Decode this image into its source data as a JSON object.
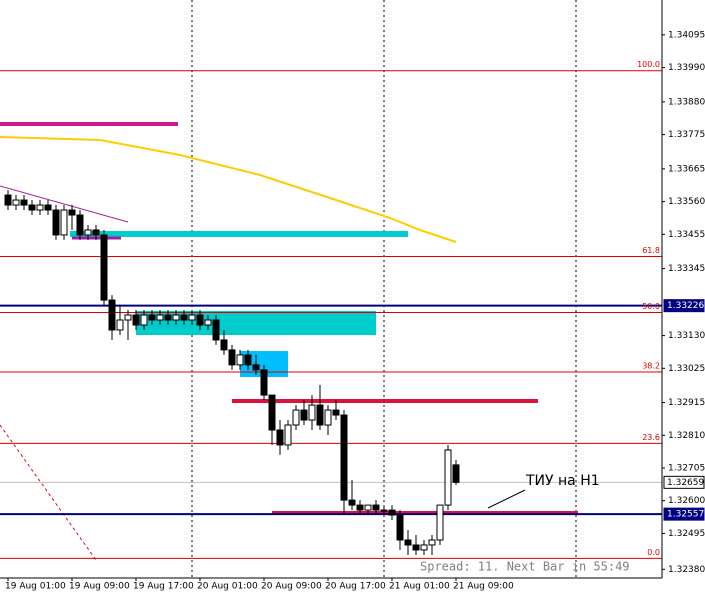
{
  "chart_data": {
    "type": "candlestick",
    "categories": [
      "19 Aug 01:00",
      null,
      null,
      null,
      null,
      null,
      null,
      null,
      "19 Aug 09:00",
      null,
      null,
      null,
      null,
      null,
      null,
      null,
      "19 Aug 17:00",
      null,
      null,
      null,
      null,
      null,
      null,
      null,
      "20 Aug 01:00",
      null,
      null,
      null,
      null,
      null,
      null,
      null,
      "20 Aug 09:00",
      null,
      null,
      null,
      null,
      null,
      null,
      null,
      "20 Aug 17:00",
      null,
      null,
      null,
      null,
      null,
      null,
      null,
      "21 Aug 01:00",
      null,
      null,
      null,
      null,
      null,
      null,
      null,
      "21 Aug 09:00"
    ],
    "open": [
      1.33581,
      1.33549,
      1.33565,
      1.33549,
      1.33533,
      1.33549,
      1.33533,
      1.33453,
      1.33533,
      1.33517,
      1.33453,
      1.33469,
      1.33453,
      1.33244,
      1.33148,
      1.3318,
      1.33196,
      1.33164,
      1.33196,
      1.3318,
      1.33196,
      1.3318,
      1.33196,
      1.3318,
      1.33196,
      1.33164,
      1.3318,
      1.33116,
      1.33084,
      1.33036,
      1.33068,
      1.33036,
      1.3302,
      1.32939,
      1.32827,
      1.32779,
      1.32843,
      1.32891,
      1.32859,
      1.32907,
      1.32843,
      1.32891,
      1.32875,
      1.32602,
      1.32586,
      1.3257,
      1.32586,
      1.3257,
      1.3257,
      1.32554,
      1.32474,
      1.32458,
      1.32442,
      1.32458,
      1.32474,
      1.32586,
      1.32715
    ],
    "high": [
      1.33597,
      1.33581,
      1.33581,
      1.33565,
      1.33565,
      1.33565,
      1.33549,
      1.33549,
      1.33549,
      1.33533,
      1.33485,
      1.33485,
      1.33469,
      1.3326,
      1.33228,
      1.33212,
      1.33212,
      1.33212,
      1.33212,
      1.33212,
      1.33212,
      1.33212,
      1.33212,
      1.33212,
      1.33212,
      1.33196,
      1.33196,
      1.33148,
      1.331,
      1.33084,
      1.33084,
      1.33068,
      1.33036,
      1.32939,
      1.32859,
      1.32859,
      1.32907,
      1.32923,
      1.32939,
      1.32972,
      1.32907,
      1.32923,
      1.32891,
      1.32667,
      1.32602,
      1.32586,
      1.32602,
      1.32586,
      1.32586,
      1.3257,
      1.32506,
      1.3249,
      1.32474,
      1.3249,
      1.32586,
      1.32779,
      1.32731
    ],
    "low": [
      1.33533,
      1.33533,
      1.33533,
      1.33517,
      1.33517,
      1.33517,
      1.33437,
      1.33437,
      1.33469,
      1.33437,
      1.33437,
      1.33437,
      1.33228,
      1.33116,
      1.33132,
      1.33116,
      1.33148,
      1.33148,
      1.33164,
      1.33164,
      1.33164,
      1.33164,
      1.33164,
      1.33164,
      1.33148,
      1.33148,
      1.331,
      1.33068,
      1.3302,
      1.3302,
      1.3302,
      1.33004,
      1.32923,
      1.32779,
      1.32747,
      1.32763,
      1.32827,
      1.32843,
      1.32827,
      1.32827,
      1.32811,
      1.32859,
      1.32554,
      1.3257,
      1.32554,
      1.32554,
      1.32554,
      1.32554,
      1.32538,
      1.32442,
      1.32426,
      1.32426,
      1.32426,
      1.32426,
      1.32458,
      1.3257,
      1.32651
    ],
    "close": [
      1.33549,
      1.33565,
      1.33549,
      1.33533,
      1.33549,
      1.33533,
      1.33453,
      1.33533,
      1.33517,
      1.33453,
      1.33469,
      1.33453,
      1.33244,
      1.33148,
      1.3318,
      1.33196,
      1.33164,
      1.33196,
      1.3318,
      1.33196,
      1.3318,
      1.33196,
      1.3318,
      1.33196,
      1.33164,
      1.3318,
      1.33116,
      1.33084,
      1.33036,
      1.33068,
      1.33036,
      1.3302,
      1.32939,
      1.32827,
      1.32779,
      1.32843,
      1.32891,
      1.32859,
      1.32907,
      1.32843,
      1.32891,
      1.32875,
      1.32602,
      1.32586,
      1.3257,
      1.32586,
      1.3257,
      1.3257,
      1.32554,
      1.32474,
      1.32458,
      1.32442,
      1.32458,
      1.32474,
      1.32586,
      1.32763,
      1.32659
    ],
    "ylim": [
      1.32352,
      1.34207
    ],
    "yticks": [
      1.34095,
      {
        "value": 1.3399,
        "label": "1.33990"
      },
      {
        "value": 1.3388,
        "label": "1.33880"
      },
      1.33775,
      1.33665,
      {
        "value": 1.3356,
        "label": "1.33560"
      },
      1.33455,
      1.33345,
      {
        "value": 1.3313,
        "label": "1.33130"
      },
      1.33025,
      1.32915,
      {
        "value": 1.3281,
        "label": "1.32810"
      },
      1.32705,
      {
        "value": 1.326,
        "label": "1.32600"
      },
      1.32495,
      {
        "value": 1.3238,
        "label": "1.32380"
      }
    ],
    "fib_levels": [
      {
        "label": "100.0",
        "value": 1.3398
      },
      {
        "label": "61.8",
        "value": 1.33384
      },
      {
        "label": "50.0",
        "value": 1.33204
      },
      {
        "label": "38.2",
        "value": 1.33013
      },
      {
        "label": "23.6",
        "value": 1.32784
      },
      {
        "label": "0.0",
        "value": 1.32415
      }
    ],
    "price_lines": [
      {
        "value": 1.33226,
        "color": "#000080"
      },
      {
        "value": 1.32557,
        "color": "#000080"
      },
      {
        "value": 1.32659,
        "color": "#c0c0c0"
      }
    ],
    "annotation": "ТИУ на H1",
    "status": "Spread: 11. Next Bar in 55:49"
  }
}
